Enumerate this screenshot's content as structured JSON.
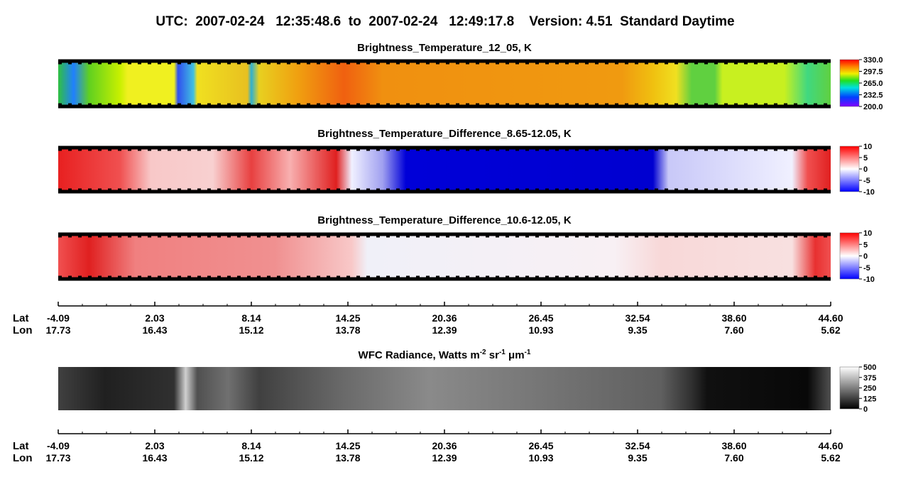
{
  "title": "UTC:  2007-02-24   12:35:48.6  to  2007-02-24   12:49:17.8    Version: 4.51  Standard Daytime",
  "panels": [
    {
      "title_parts": [
        "Brightness_Temperature_12_05, K"
      ],
      "colorbar_ticks": [
        "330.0",
        "297.5",
        "265.0",
        "232.5",
        "200.0"
      ]
    },
    {
      "title_parts": [
        "Brightness_Temperature_Difference_8.65-12.05, K"
      ],
      "colorbar_ticks": [
        "10",
        "5",
        "0",
        "-5",
        "-10"
      ]
    },
    {
      "title_parts": [
        "Brightness_Temperature_Difference_10.6-12.05, K"
      ],
      "colorbar_ticks": [
        "10",
        "5",
        "0",
        "-5",
        "-10"
      ]
    },
    {
      "title_parts": [
        "WFC Radiance, Watts m",
        "-2",
        " sr",
        "-1",
        " μm",
        "-1"
      ],
      "colorbar_ticks": [
        "500",
        "375",
        "250",
        "125",
        "0"
      ]
    }
  ],
  "axes": [
    {
      "lat_label": "Lat",
      "lon_label": "Lon",
      "lat": [
        "-4.09",
        "2.03",
        "8.14",
        "14.25",
        "20.36",
        "26.45",
        "32.54",
        "38.60",
        "44.60"
      ],
      "lon": [
        "17.73",
        "16.43",
        "15.12",
        "13.78",
        "12.39",
        "10.93",
        "9.35",
        "7.60",
        "5.62"
      ]
    },
    {
      "lat_label": "Lat",
      "lon_label": "Lon",
      "lat": [
        "-4.09",
        "2.03",
        "8.14",
        "14.25",
        "20.36",
        "26.45",
        "32.54",
        "38.60",
        "44.60"
      ],
      "lon": [
        "17.73",
        "16.43",
        "15.12",
        "13.78",
        "12.39",
        "10.93",
        "9.35",
        "7.60",
        "5.62"
      ]
    }
  ]
}
